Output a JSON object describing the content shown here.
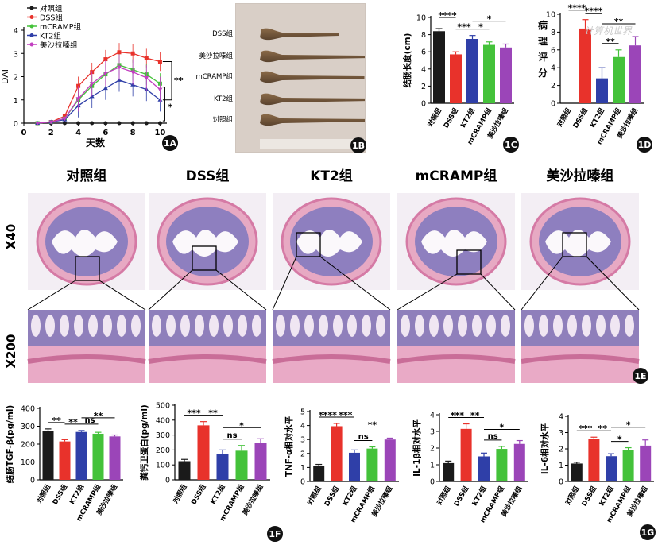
{
  "colors": {
    "ctrl": "#1a1a1a",
    "dss": "#e8322b",
    "kt2": "#2f3fa8",
    "mcramp": "#44c23a",
    "mesa": "#9b45b8",
    "mesa_line": "#c23fc0"
  },
  "panel_labels": {
    "a": "1A",
    "b": "1B",
    "c": "1C",
    "d": "1D",
    "e": "1E",
    "f": "1F",
    "g": "1G"
  },
  "groups": [
    "对照组",
    "DSS组",
    "KT2组",
    "mCRAMP组",
    "美沙拉嗪组"
  ],
  "photo_labels": [
    "DSS组",
    "美沙拉嗪组",
    "mCRAMP组",
    "KT2组",
    "对照组"
  ],
  "histo": {
    "col_titles": [
      "对照组",
      "DSS组",
      "KT2组",
      "mCRAMP组",
      "美沙拉嗪组"
    ],
    "row_labels": [
      "X40",
      "X200"
    ]
  },
  "watermark": "计算机世界",
  "chart_data": [
    {
      "id": "1A",
      "type": "line",
      "ylabel": "DAI",
      "xlabel": "天数",
      "xticks": [
        0,
        2,
        4,
        6,
        8,
        10
      ],
      "yticks": [
        0,
        1,
        2,
        3,
        4
      ],
      "xlim": [
        0,
        10.5
      ],
      "ylim": [
        0,
        4
      ],
      "x": [
        1,
        2,
        3,
        4,
        5,
        6,
        7,
        8,
        9,
        10
      ],
      "series": [
        {
          "name": "对照组",
          "values": [
            0,
            0,
            0,
            0,
            0,
            0,
            0,
            0,
            0,
            0
          ]
        },
        {
          "name": "DSS组",
          "values": [
            0,
            0.05,
            0.3,
            1.6,
            2.2,
            2.75,
            3.05,
            3.0,
            2.8,
            2.65
          ]
        },
        {
          "name": "mCRAMP组",
          "values": [
            0,
            0.05,
            0.2,
            1.0,
            1.6,
            2.1,
            2.5,
            2.3,
            2.1,
            1.7
          ]
        },
        {
          "name": "KT2组",
          "values": [
            0,
            0.05,
            0.15,
            0.75,
            1.15,
            1.5,
            1.85,
            1.65,
            1.45,
            1.0
          ]
        },
        {
          "name": "美沙拉嗪组",
          "values": [
            0,
            0.05,
            0.2,
            1.05,
            1.7,
            2.15,
            2.4,
            2.2,
            1.95,
            1.45
          ]
        }
      ],
      "sig": [
        "**",
        "*"
      ]
    },
    {
      "id": "1C",
      "type": "bar",
      "ylabel": "结肠长度(cm)",
      "yticks": [
        0,
        2,
        4,
        6,
        8,
        10
      ],
      "ylim": [
        0,
        10
      ],
      "categories": [
        "对照组",
        "DSS组",
        "KT2组",
        "mCRAMP组",
        "美沙拉嗪组"
      ],
      "values": [
        8.4,
        5.7,
        7.5,
        6.8,
        6.5
      ],
      "errors": [
        0.3,
        0.3,
        0.4,
        0.35,
        0.4
      ],
      "sig": [
        {
          "a": 0,
          "b": 1,
          "t": "****"
        },
        {
          "a": 1,
          "b": 2,
          "t": "***"
        },
        {
          "a": 2,
          "b": 4,
          "t": "*"
        },
        {
          "a": 2,
          "b": 3,
          "t": "*"
        }
      ]
    },
    {
      "id": "1D",
      "type": "bar",
      "ylabel": "病理评分",
      "yticks": [
        0,
        2,
        4,
        6,
        8,
        10
      ],
      "ylim": [
        0,
        10
      ],
      "categories": [
        "对照组",
        "DSS组",
        "KT2组",
        "mCRAMP组",
        "美沙拉嗪组"
      ],
      "values": [
        0,
        8.4,
        2.8,
        5.2,
        6.5
      ],
      "errors": [
        0,
        1.0,
        1.2,
        0.8,
        1.0
      ],
      "sig": [
        {
          "a": 0,
          "b": 1,
          "t": "****"
        },
        {
          "a": 1,
          "b": 2,
          "t": "****"
        },
        {
          "a": 2,
          "b": 4,
          "t": "**"
        },
        {
          "a": 2,
          "b": 3,
          "t": "**"
        }
      ]
    },
    {
      "id": "1F-a",
      "type": "bar",
      "ylabel": "结肠TGF-β(pg/ml)",
      "yticks": [
        0,
        100,
        200,
        300,
        400
      ],
      "ylim": [
        0,
        400
      ],
      "categories": [
        "对照组",
        "DSS组",
        "KT2组",
        "mCRAMP组",
        "美沙拉嗪组"
      ],
      "values": [
        275,
        215,
        268,
        258,
        243
      ],
      "errors": [
        10,
        10,
        8,
        8,
        8
      ],
      "sig": [
        {
          "a": 0,
          "b": 1,
          "t": "**"
        },
        {
          "a": 1,
          "b": 2,
          "t": "**"
        },
        {
          "a": 2,
          "b": 3,
          "t": "ns"
        },
        {
          "a": 2,
          "b": 4,
          "t": "**"
        }
      ]
    },
    {
      "id": "1F-b",
      "type": "bar",
      "ylabel": "粪钙卫蛋白(pg/ml)",
      "yticks": [
        0,
        100,
        200,
        300,
        400,
        500
      ],
      "ylim": [
        0,
        500
      ],
      "categories": [
        "对照组",
        "DSS组",
        "KT2组",
        "mCRAMP组",
        "美沙拉嗪组"
      ],
      "values": [
        125,
        365,
        175,
        195,
        245
      ],
      "errors": [
        12,
        25,
        25,
        35,
        30
      ],
      "sig": [
        {
          "a": 0,
          "b": 1,
          "t": "***"
        },
        {
          "a": 1,
          "b": 2,
          "t": "**"
        },
        {
          "a": 2,
          "b": 3,
          "t": "ns"
        },
        {
          "a": 2,
          "b": 4,
          "t": "*"
        }
      ]
    },
    {
      "id": "1F-c",
      "type": "bar",
      "ylabel": "TNF-α相对水平",
      "yticks": [
        0,
        1,
        2,
        3,
        4,
        5
      ],
      "ylim": [
        0,
        5
      ],
      "categories": [
        "对照组",
        "DSS组",
        "KT2组",
        "mCRAMP组",
        "美沙拉嗪组"
      ],
      "values": [
        1.1,
        3.95,
        2.05,
        2.35,
        3.0
      ],
      "errors": [
        0.12,
        0.2,
        0.2,
        0.12,
        0.1
      ],
      "sig": [
        {
          "a": 0,
          "b": 1,
          "t": "****"
        },
        {
          "a": 1,
          "b": 2,
          "t": "***"
        },
        {
          "a": 2,
          "b": 3,
          "t": "ns"
        },
        {
          "a": 2,
          "b": 4,
          "t": "**"
        }
      ]
    },
    {
      "id": "1F-d",
      "type": "bar",
      "ylabel": "IL-1β相对水平",
      "yticks": [
        0,
        1,
        2,
        3,
        4
      ],
      "ylim": [
        0,
        4
      ],
      "categories": [
        "对照组",
        "DSS组",
        "KT2组",
        "mCRAMP组",
        "美沙拉嗪组"
      ],
      "values": [
        1.1,
        3.15,
        1.5,
        1.95,
        2.25
      ],
      "errors": [
        0.12,
        0.3,
        0.2,
        0.15,
        0.2
      ],
      "sig": [
        {
          "a": 0,
          "b": 1,
          "t": "***"
        },
        {
          "a": 1,
          "b": 2,
          "t": "**"
        },
        {
          "a": 2,
          "b": 3,
          "t": "ns"
        },
        {
          "a": 2,
          "b": 4,
          "t": "*"
        }
      ]
    },
    {
      "id": "1G",
      "type": "bar",
      "ylabel": "IL-6相对水平",
      "yticks": [
        0,
        1,
        2,
        3,
        4
      ],
      "ylim": [
        0,
        4
      ],
      "categories": [
        "对照组",
        "DSS组",
        "KT2组",
        "mCRAMP组",
        "美沙拉嗪组"
      ],
      "values": [
        1.1,
        2.6,
        1.55,
        1.95,
        2.2
      ],
      "errors": [
        0.08,
        0.12,
        0.15,
        0.12,
        0.35
      ],
      "sig": [
        {
          "a": 0,
          "b": 1,
          "t": "***"
        },
        {
          "a": 1,
          "b": 2,
          "t": "**"
        },
        {
          "a": 2,
          "b": 3,
          "t": "*"
        },
        {
          "a": 2,
          "b": 4,
          "t": "*"
        }
      ]
    }
  ]
}
